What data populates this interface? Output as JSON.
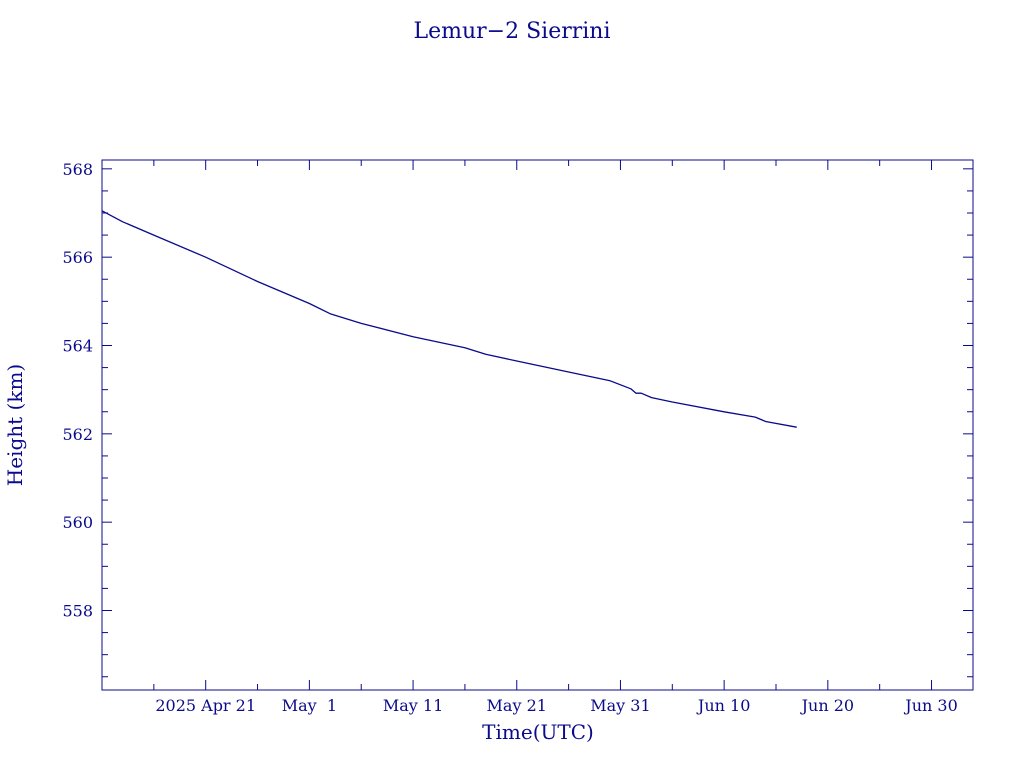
{
  "chart_data": {
    "type": "line",
    "title": "Lemur−2 Sierrini",
    "xlabel": "Time(UTC)",
    "ylabel": "Height (km)",
    "color": "#0a0a8c",
    "background": "#ffffff",
    "grid": false,
    "xlim": [
      "2025-04-11",
      "2025-07-04"
    ],
    "ylim": [
      556.2,
      568.2
    ],
    "x_ticks": [
      {
        "date": "2025-04-21",
        "label": "2025 Apr 21"
      },
      {
        "date": "2025-05-01",
        "label": "May  1"
      },
      {
        "date": "2025-05-11",
        "label": "May 11"
      },
      {
        "date": "2025-05-21",
        "label": "May 21"
      },
      {
        "date": "2025-05-31",
        "label": "May 31"
      },
      {
        "date": "2025-06-10",
        "label": "Jun 10"
      },
      {
        "date": "2025-06-20",
        "label": "Jun 20"
      },
      {
        "date": "2025-06-30",
        "label": "Jun 30"
      }
    ],
    "y_ticks": [
      558,
      560,
      562,
      564,
      566,
      568
    ],
    "series": [
      {
        "x": [
          "2025-04-11",
          "2025-04-13",
          "2025-04-16",
          "2025-04-21",
          "2025-04-26",
          "2025-05-01",
          "2025-05-03",
          "2025-05-06",
          "2025-05-11",
          "2025-05-16",
          "2025-05-18",
          "2025-05-21",
          "2025-05-26",
          "2025-05-30",
          "2025-06-01",
          "2025-06-01 12:00",
          "2025-06-02",
          "2025-06-03",
          "2025-06-05",
          "2025-06-10",
          "2025-06-13",
          "2025-06-14",
          "2025-06-17"
        ],
        "y": [
          567.05,
          566.8,
          566.5,
          566.0,
          565.45,
          564.95,
          564.72,
          564.5,
          564.2,
          563.95,
          563.8,
          563.65,
          563.4,
          563.2,
          563.02,
          562.92,
          562.92,
          562.82,
          562.72,
          562.5,
          562.38,
          562.28,
          562.15
        ]
      }
    ]
  }
}
